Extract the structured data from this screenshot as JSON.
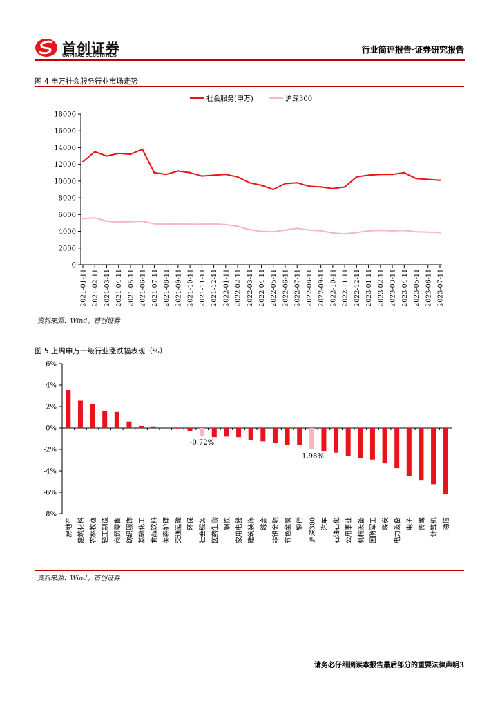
{
  "header": {
    "logo_cn": "首创证券",
    "logo_en": "CAPITAL SECURITIES",
    "report_type": "行业简评报告·证券研究报告"
  },
  "figure4": {
    "title": "图 4 申万社会服务行业市场走势",
    "source": "资料来源：Wind，首创证券"
  },
  "figure5": {
    "title": "图 5 上周申万一级行业涨跌幅表现（%）",
    "source": "资料来源：Wind，首创证券"
  },
  "footer": {
    "text": "请务必仔细阅读本报告最后部分的重要法律声明3"
  },
  "colors": {
    "accent": "#c00000",
    "series_main": "#e8141c",
    "series_secondary": "#f7b6c2",
    "bar_main": "#e8141c",
    "bar_highlight": "#f7b6c2"
  },
  "chart_data": [
    {
      "type": "line",
      "title": "",
      "xlabel": "",
      "ylabel": "",
      "ylim": [
        0,
        18000
      ],
      "yticks": [
        0,
        2000,
        4000,
        6000,
        8000,
        10000,
        12000,
        14000,
        16000,
        18000
      ],
      "x": [
        "2021-01-11",
        "2021-02-11",
        "2021-03-11",
        "2021-04-11",
        "2021-05-11",
        "2021-06-11",
        "2021-07-11",
        "2021-08-11",
        "2021-09-11",
        "2021-10-11",
        "2021-11-11",
        "2021-12-11",
        "2022-01-11",
        "2022-02-11",
        "2022-03-11",
        "2022-04-11",
        "2022-05-11",
        "2022-06-11",
        "2022-07-11",
        "2022-08-11",
        "2022-09-11",
        "2022-10-11",
        "2022-11-11",
        "2022-12-11",
        "2023-01-11",
        "2023-02-11",
        "2023-03-11",
        "2023-04-11",
        "2023-05-11",
        "2023-06-11",
        "2023-07-11"
      ],
      "legend_position": "top",
      "grid": false,
      "series": [
        {
          "name": "社会服务(申万)",
          "values": [
            12300,
            13500,
            13000,
            13300,
            13200,
            13800,
            11000,
            10800,
            11200,
            11000,
            10600,
            10700,
            10800,
            10500,
            9800,
            9500,
            9000,
            9700,
            9800,
            9400,
            9300,
            9100,
            9300,
            10500,
            10700,
            10800,
            10800,
            11000,
            10300,
            10200,
            10100
          ]
        },
        {
          "name": "沪深300",
          "values": [
            5500,
            5600,
            5200,
            5100,
            5150,
            5200,
            4900,
            4850,
            4900,
            4850,
            4850,
            4900,
            4800,
            4600,
            4200,
            4000,
            3950,
            4150,
            4350,
            4150,
            4050,
            3800,
            3700,
            3850,
            4050,
            4100,
            4050,
            4100,
            3950,
            3900,
            3850
          ]
        }
      ]
    },
    {
      "type": "bar",
      "title": "",
      "xlabel": "",
      "ylabel": "",
      "ylim": [
        -8,
        6
      ],
      "yticks": [
        -8,
        -6,
        -4,
        -2,
        0,
        2,
        4,
        6
      ],
      "ytick_labels": [
        "-8%",
        "-6%",
        "-4%",
        "-2%",
        "0%",
        "2%",
        "4%",
        "6%"
      ],
      "grid": false,
      "categories": [
        "房地产",
        "建筑材料",
        "农林牧渔",
        "轻工制造",
        "商贸零售",
        "纺织服饰",
        "基础化工",
        "食品饮料",
        "美容护理",
        "交通运输",
        "环保",
        "社会服务",
        "医药生物",
        "钢铁",
        "家用电器",
        "建筑装饰",
        "综合",
        "非银金融",
        "有色金属",
        "银行",
        "沪深300",
        "汽车",
        "石油石化",
        "公用事业",
        "机械设备",
        "国防军工",
        "煤炭",
        "电力设备",
        "电子",
        "传媒",
        "计算机",
        "通信"
      ],
      "values": [
        3.55,
        2.55,
        2.2,
        1.6,
        1.5,
        0.6,
        0.2,
        0.15,
        0.05,
        -0.05,
        -0.3,
        -0.72,
        -0.85,
        -0.8,
        -0.85,
        -1.1,
        -1.25,
        -1.4,
        -1.55,
        -1.6,
        -1.98,
        -2.2,
        -2.3,
        -2.6,
        -2.8,
        -2.95,
        -3.3,
        -3.75,
        -4.5,
        -4.85,
        -5.25,
        -6.2
      ],
      "highlight": [
        "社会服务",
        "沪深300"
      ],
      "data_labels": [
        {
          "category": "社会服务",
          "text": "-0.72%"
        },
        {
          "category": "沪深300",
          "text": "-1.98%"
        }
      ]
    }
  ]
}
